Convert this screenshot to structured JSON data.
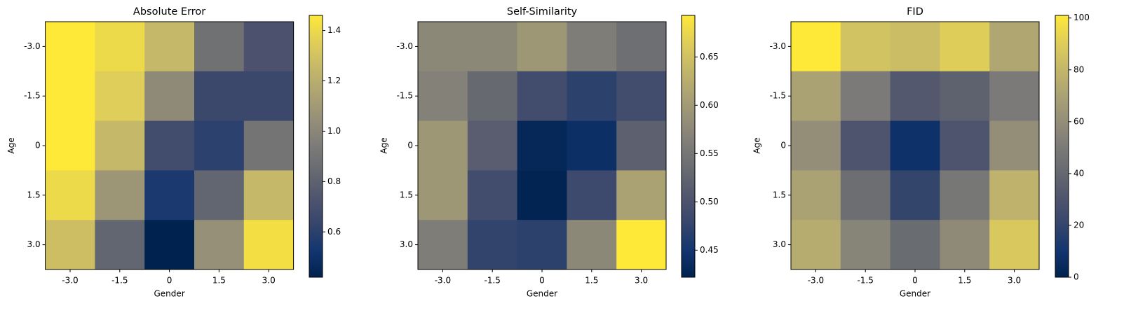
{
  "chart_data": [
    {
      "type": "heatmap",
      "title": "Absolute Error",
      "x_label": "Gender",
      "y_label": "Age",
      "x_categories": [
        "-3.0",
        "-1.5",
        "0",
        "1.5",
        "3.0"
      ],
      "y_categories": [
        "-3.0",
        "-1.5",
        "0",
        "1.5",
        "3.0"
      ],
      "values": [
        [
          1.46,
          1.4,
          1.25,
          0.88,
          0.72
        ],
        [
          1.46,
          1.35,
          1.02,
          0.65,
          0.65
        ],
        [
          1.46,
          1.25,
          0.68,
          0.6,
          0.9
        ],
        [
          1.4,
          1.08,
          0.55,
          0.82,
          1.25
        ],
        [
          1.28,
          0.82,
          0.42,
          1.05,
          1.42
        ]
      ],
      "colormap": "cividis",
      "colorbar_lim": [
        0.42,
        1.46
      ],
      "colorbar_ticks": [
        0.6,
        0.8,
        {
          "value": 1,
          "label": "1.0"
        },
        1.2,
        1.4
      ]
    },
    {
      "type": "heatmap",
      "title": "Self-Similarity",
      "x_label": "Gender",
      "y_label": "Age",
      "x_categories": [
        "-3.0",
        "-1.5",
        "0",
        "1.5",
        "3.0"
      ],
      "y_categories": [
        "-3.0",
        "-1.5",
        "0",
        "1.5",
        "3.0"
      ],
      "values": [
        [
          0.575,
          0.575,
          0.595,
          0.56,
          0.54
        ],
        [
          0.565,
          0.53,
          0.49,
          0.47,
          0.49
        ],
        [
          0.595,
          0.515,
          0.43,
          0.44,
          0.52
        ],
        [
          0.595,
          0.49,
          0.425,
          0.485,
          0.61
        ],
        [
          0.56,
          0.475,
          0.47,
          0.575,
          0.693
        ]
      ],
      "colormap": "cividis",
      "colorbar_lim": [
        0.422,
        0.693
      ],
      "colorbar_ticks": [
        0.45,
        {
          "value": 0.5,
          "label": "0.50"
        },
        0.55,
        {
          "value": 0.6,
          "label": "0.60"
        },
        0.65
      ]
    },
    {
      "type": "heatmap",
      "title": "FID",
      "x_label": "Gender",
      "y_label": "Age",
      "x_categories": [
        "-3.0",
        "-1.5",
        "0",
        "1.5",
        "3.0"
      ],
      "y_categories": [
        "-3.0",
        "-1.5",
        "0",
        "1.5",
        "3.0"
      ],
      "values": [
        [
          101,
          85,
          83,
          90,
          72
        ],
        [
          70,
          50,
          32,
          37,
          50
        ],
        [
          60,
          30,
          8,
          30,
          60
        ],
        [
          70,
          43,
          20,
          48,
          78
        ],
        [
          75,
          55,
          42,
          58,
          88
        ]
      ],
      "colormap": "cividis",
      "colorbar_lim": [
        0,
        101
      ],
      "colorbar_ticks": [
        0,
        20,
        40,
        60,
        80,
        100
      ]
    }
  ]
}
